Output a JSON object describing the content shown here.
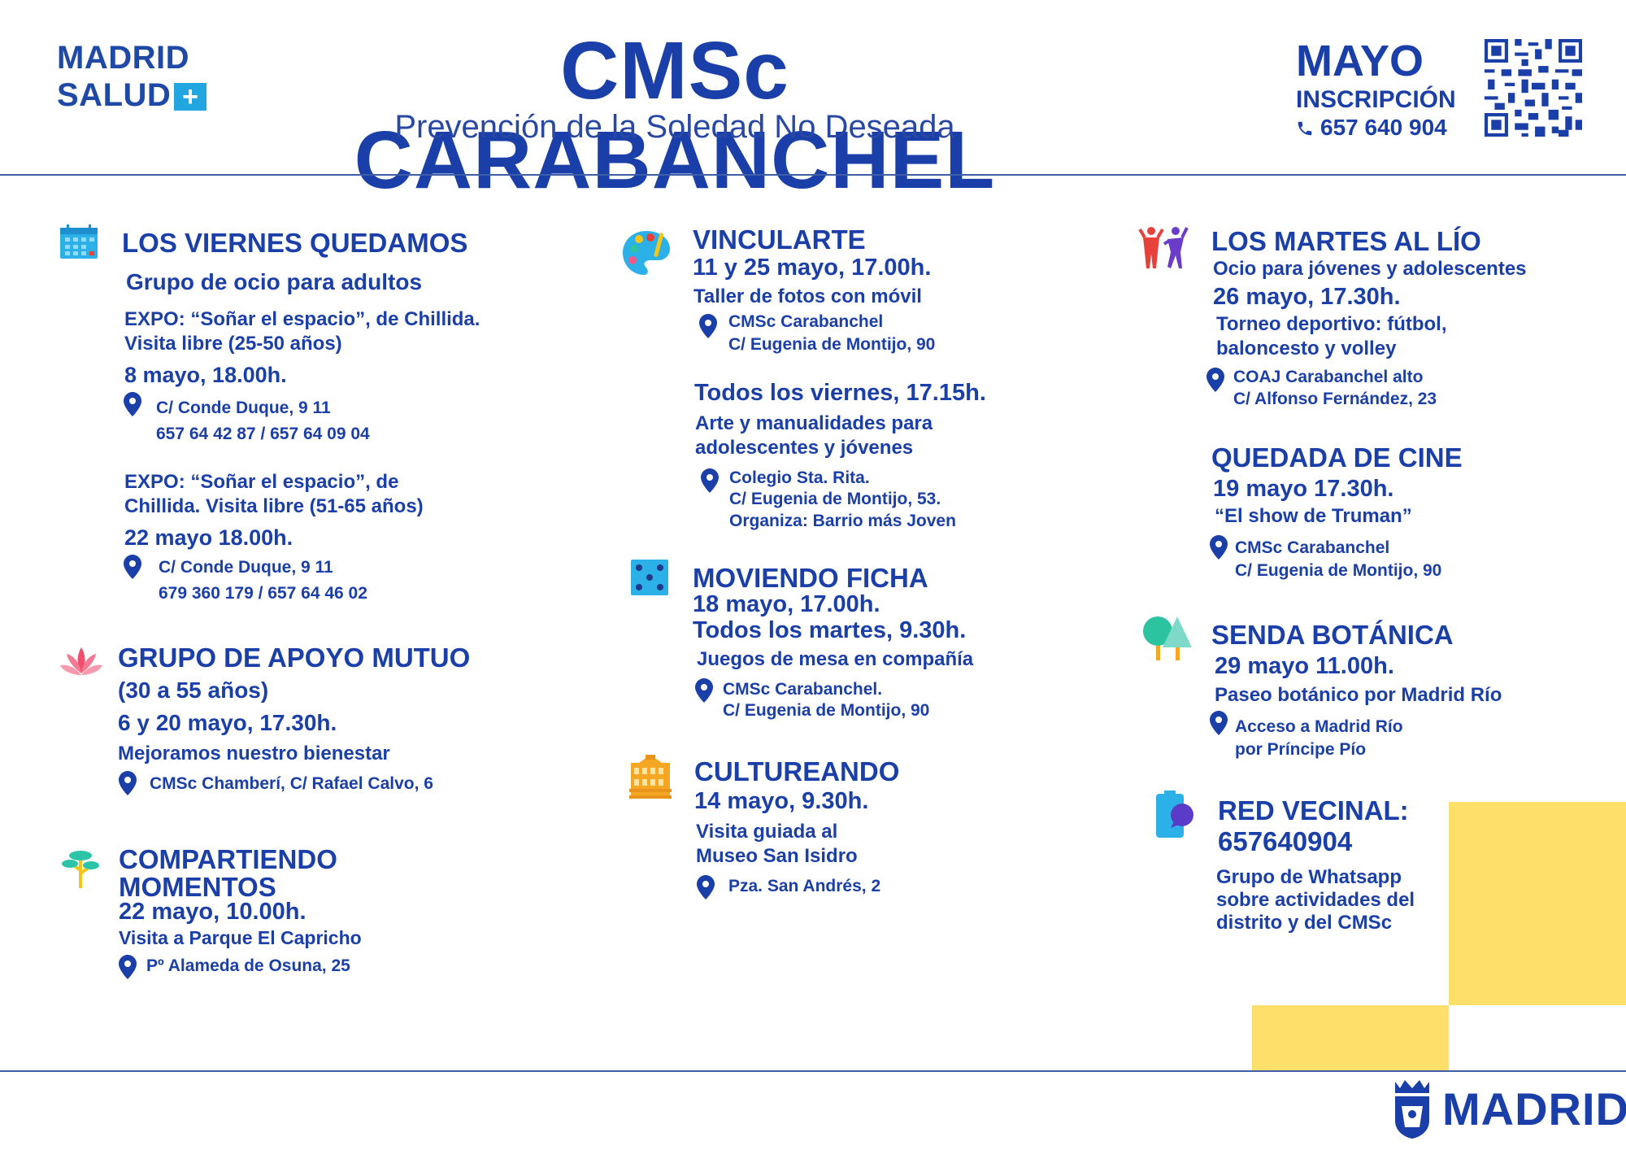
{
  "header": {
    "logo_line1": "MADRID",
    "logo_line2": "SALUD",
    "logo_plus": "+",
    "title": "CMSc CARABANCHEL",
    "subtitle": "Prevención de la Soledad No Deseada",
    "month": "MAYO",
    "inscription_label": "INSCRIPCIÓN",
    "phone": "657 640 904"
  },
  "colors": {
    "primary": "#1b3fa8",
    "accent_blue": "#22a6e1",
    "yellow": "#fddf69"
  },
  "col1": {
    "viernes": {
      "icon": "calendar-icon",
      "title": "LOS VIERNES QUEDAMOS",
      "subtitle": "Grupo de ocio para adultos",
      "expo1_line1": "EXPO: “Soñar el espacio”, de Chillida.",
      "expo1_line2": "Visita libre (25-50 años)",
      "expo1_date": "8 mayo, 18.00h.",
      "expo1_loc1": "C/ Conde Duque, 9 11",
      "expo1_loc2": "657 64 42 87 / 657 64 09 04",
      "expo2_line1": "EXPO: “Soñar el espacio”, de",
      "expo2_line2": "Chillida. Visita libre (51-65 años)",
      "expo2_date": "22 mayo 18.00h.",
      "expo2_loc1": "C/ Conde Duque, 9 11",
      "expo2_loc2": "679 360 179 / 657 64 46 02"
    },
    "apoyo": {
      "icon": "lotus-icon",
      "title": "GRUPO DE APOYO MUTUO",
      "age": "(30 a 55 años)",
      "date": "6 y 20 mayo, 17.30h.",
      "desc": "Mejoramos nuestro bienestar",
      "loc": "CMSc Chamberí, C/ Rafael Calvo, 6"
    },
    "compartiendo": {
      "icon": "tree-icon",
      "title1": "COMPARTIENDO",
      "title2": "MOMENTOS",
      "date": "22 mayo, 10.00h.",
      "desc": "Visita a Parque El Capricho",
      "loc": "Pº Alameda de Osuna, 25"
    }
  },
  "col2": {
    "vincularte": {
      "icon": "palette-icon",
      "title": "VINCULARTE",
      "date": "11 y 25 mayo, 17.00h.",
      "desc": "Taller de fotos con móvil",
      "loc1": "CMSc Carabanchel",
      "loc2": "C/ Eugenia de Montijo, 90",
      "date2": "Todos los viernes, 17.15h.",
      "desc2_1": "Arte y manualidades para",
      "desc2_2": "adolescentes y jóvenes",
      "loc2_1": "Colegio Sta. Rita.",
      "loc2_2": "C/ Eugenia de Montijo, 53.",
      "loc2_3": "Organiza: Barrio más Joven"
    },
    "ficha": {
      "icon": "dice-icon",
      "title": "MOVIENDO FICHA",
      "date1": "18 mayo, 17.00h.",
      "date2": "Todos los martes, 9.30h.",
      "desc": "Juegos de mesa en compañía",
      "loc1": "CMSc Carabanchel.",
      "loc2": "C/ Eugenia de Montijo, 90"
    },
    "cultureando": {
      "icon": "building-icon",
      "title": "CULTUREANDO",
      "date": "14 mayo, 9.30h.",
      "desc1": "Visita guiada al",
      "desc2": "Museo San Isidro",
      "loc": "Pza. San Andrés, 2"
    }
  },
  "col3": {
    "martes": {
      "icon": "people-dancing-icon",
      "title": "LOS MARTES AL LÍO",
      "subtitle": "Ocio para jóvenes y adolescentes",
      "date": "26 mayo, 17.30h.",
      "desc1": "Torneo deportivo: fútbol,",
      "desc2": "baloncesto y volley",
      "loc1": "COAJ Carabanchel alto",
      "loc2": "C/ Alfonso Fernández, 23"
    },
    "cine": {
      "title": "QUEDADA DE CINE",
      "date": "19 mayo 17.30h.",
      "desc": "“El show de Truman”",
      "loc1": "CMSc Carabanchel",
      "loc2": "C/ Eugenia de Montijo, 90"
    },
    "senda": {
      "icon": "trees-icon",
      "title": "SENDA BOTÁNICA",
      "date": "29 mayo 11.00h.",
      "desc": "Paseo botánico por Madrid Río",
      "loc1": "Acceso a Madrid Río",
      "loc2": "por Príncipe Pío"
    },
    "red": {
      "icon": "phone-chat-icon",
      "title1": "RED VECINAL:",
      "title2": "657640904",
      "desc1": "Grupo de Whatsapp",
      "desc2": "sobre actividades del",
      "desc3": "distrito y del CMSc"
    }
  },
  "footer": {
    "logo": "MADRID"
  }
}
